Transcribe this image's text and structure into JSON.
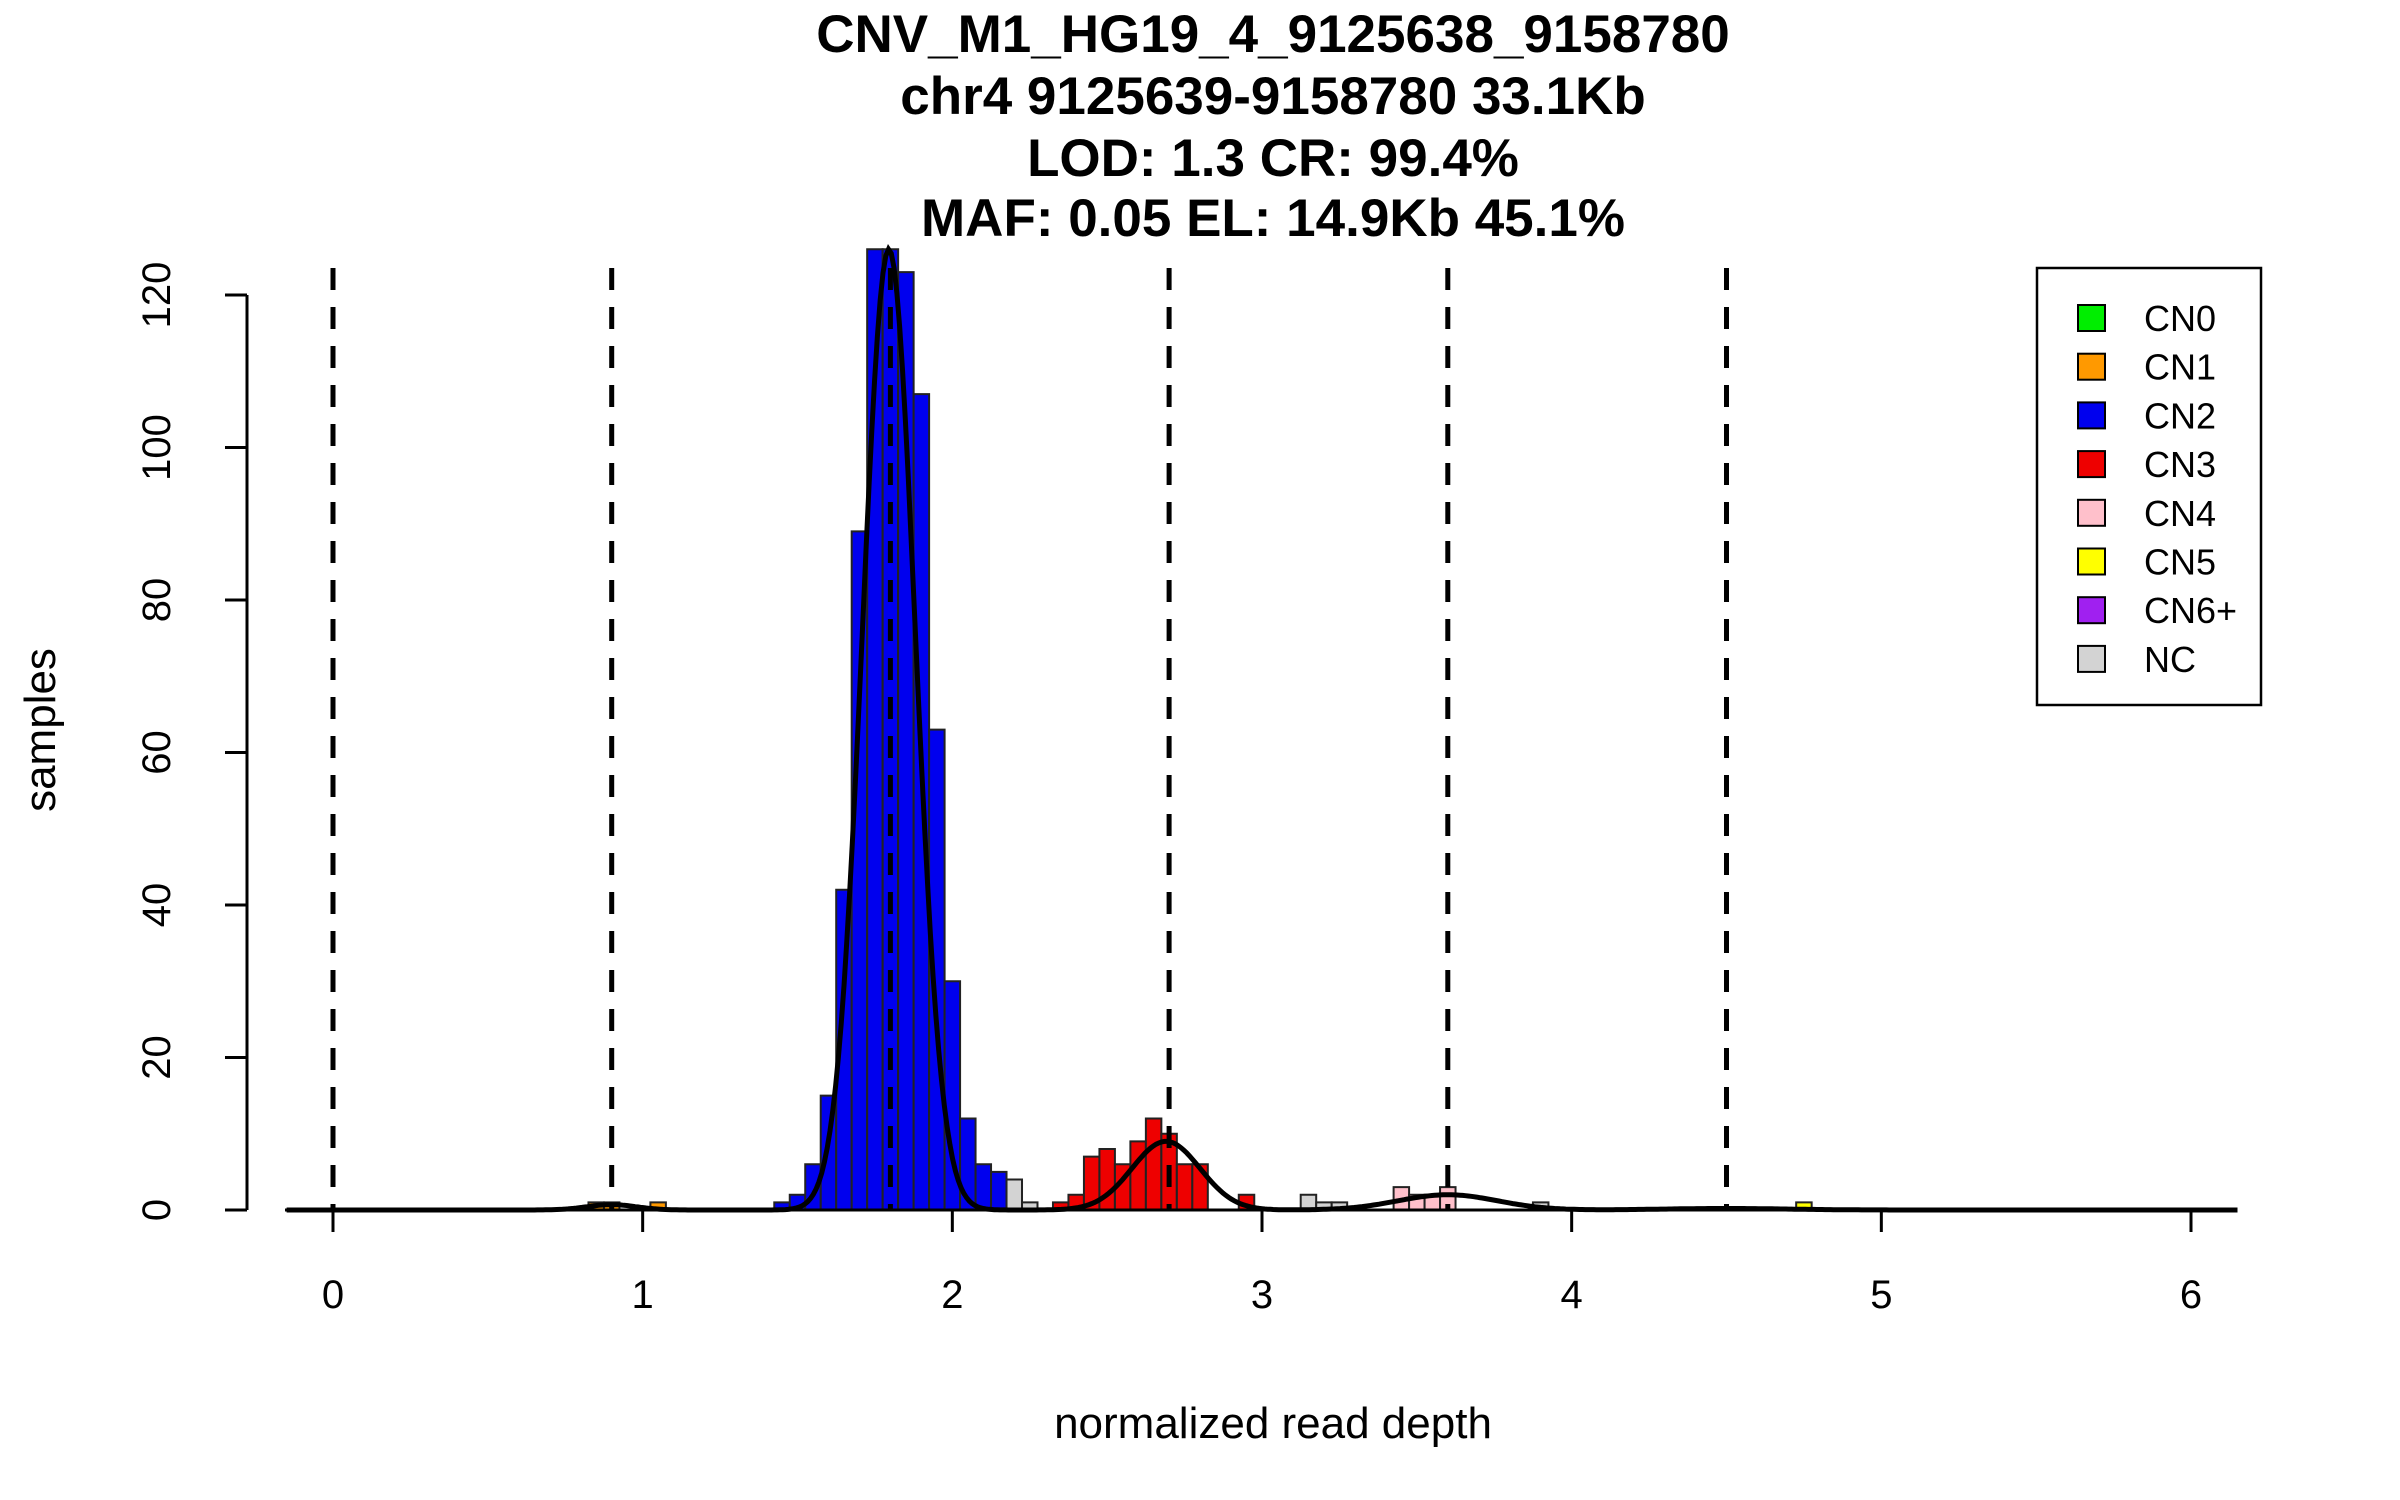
{
  "chart_data": {
    "type": "bar",
    "title_lines": [
      "CNV_M1_HG19_4_9125638_9158780",
      "chr4 9125639-9158780 33.1Kb",
      "LOD: 1.3 CR: 99.4%",
      "MAF: 0.05 EL: 14.9Kb 45.1%"
    ],
    "xlabel": "normalized read depth",
    "ylabel": "samples",
    "xlim": [
      -0.15,
      6.15
    ],
    "ylim": [
      0,
      126
    ],
    "x_ticks": [
      0,
      1,
      2,
      3,
      4,
      5,
      6
    ],
    "y_ticks": [
      0,
      20,
      40,
      60,
      80,
      100,
      120
    ],
    "grid": false,
    "legend_position": "top-right",
    "legend": [
      {
        "label": "CN0",
        "color": "#00ee00"
      },
      {
        "label": "CN1",
        "color": "#ff9900"
      },
      {
        "label": "CN2",
        "color": "#0000ee"
      },
      {
        "label": "CN3",
        "color": "#ee0000"
      },
      {
        "label": "CN4",
        "color": "#ffc0cb"
      },
      {
        "label": "CN5",
        "color": "#ffff00"
      },
      {
        "label": "CN6+",
        "color": "#a020f0"
      },
      {
        "label": "NC",
        "color": "#d3d3d3"
      }
    ],
    "cutoffs": [
      0,
      0.9,
      1.8,
      2.7,
      3.6,
      4.5
    ],
    "bin_width": 0.05,
    "bars": [
      {
        "x": 0.85,
        "y": 1,
        "class": "CN1"
      },
      {
        "x": 0.9,
        "y": 1,
        "class": "CN1"
      },
      {
        "x": 1.05,
        "y": 1,
        "class": "CN1"
      },
      {
        "x": 1.45,
        "y": 1,
        "class": "CN2"
      },
      {
        "x": 1.5,
        "y": 2,
        "class": "CN2"
      },
      {
        "x": 1.55,
        "y": 6,
        "class": "CN2"
      },
      {
        "x": 1.6,
        "y": 15,
        "class": "CN2"
      },
      {
        "x": 1.65,
        "y": 42,
        "class": "CN2"
      },
      {
        "x": 1.7,
        "y": 89,
        "class": "CN2"
      },
      {
        "x": 1.75,
        "y": 126,
        "class": "CN2"
      },
      {
        "x": 1.8,
        "y": 126,
        "class": "CN2"
      },
      {
        "x": 1.85,
        "y": 123,
        "class": "CN2"
      },
      {
        "x": 1.9,
        "y": 107,
        "class": "CN2"
      },
      {
        "x": 1.95,
        "y": 63,
        "class": "CN2"
      },
      {
        "x": 2.0,
        "y": 30,
        "class": "CN2"
      },
      {
        "x": 2.05,
        "y": 12,
        "class": "CN2"
      },
      {
        "x": 2.1,
        "y": 6,
        "class": "CN2"
      },
      {
        "x": 2.15,
        "y": 5,
        "class": "CN2"
      },
      {
        "x": 2.2,
        "y": 4,
        "class": "NC"
      },
      {
        "x": 2.25,
        "y": 1,
        "class": "NC"
      },
      {
        "x": 2.35,
        "y": 1,
        "class": "CN3"
      },
      {
        "x": 2.4,
        "y": 2,
        "class": "CN3"
      },
      {
        "x": 2.45,
        "y": 7,
        "class": "CN3"
      },
      {
        "x": 2.5,
        "y": 8,
        "class": "CN3"
      },
      {
        "x": 2.55,
        "y": 6,
        "class": "CN3"
      },
      {
        "x": 2.6,
        "y": 9,
        "class": "CN3"
      },
      {
        "x": 2.65,
        "y": 12,
        "class": "CN3"
      },
      {
        "x": 2.7,
        "y": 10,
        "class": "CN3"
      },
      {
        "x": 2.75,
        "y": 6,
        "class": "CN3"
      },
      {
        "x": 2.8,
        "y": 6,
        "class": "CN3"
      },
      {
        "x": 2.95,
        "y": 2,
        "class": "CN3"
      },
      {
        "x": 3.15,
        "y": 2,
        "class": "NC"
      },
      {
        "x": 3.2,
        "y": 1,
        "class": "NC"
      },
      {
        "x": 3.25,
        "y": 1,
        "class": "NC"
      },
      {
        "x": 3.45,
        "y": 3,
        "class": "CN4"
      },
      {
        "x": 3.5,
        "y": 2,
        "class": "CN4"
      },
      {
        "x": 3.55,
        "y": 2,
        "class": "CN4"
      },
      {
        "x": 3.6,
        "y": 3,
        "class": "CN4"
      },
      {
        "x": 3.9,
        "y": 1,
        "class": "NC"
      },
      {
        "x": 4.75,
        "y": 1,
        "class": "CN5"
      }
    ],
    "density_components": [
      {
        "mean": 0.9,
        "sd": 0.08,
        "peak": 0.7
      },
      {
        "mean": 1.795,
        "sd": 0.085,
        "peak": 126
      },
      {
        "mean": 2.69,
        "sd": 0.11,
        "peak": 9
      },
      {
        "mean": 3.6,
        "sd": 0.16,
        "peak": 2
      },
      {
        "mean": 4.5,
        "sd": 0.2,
        "peak": 0.2
      }
    ],
    "density_x_range": [
      -0.15,
      6.15
    ]
  }
}
